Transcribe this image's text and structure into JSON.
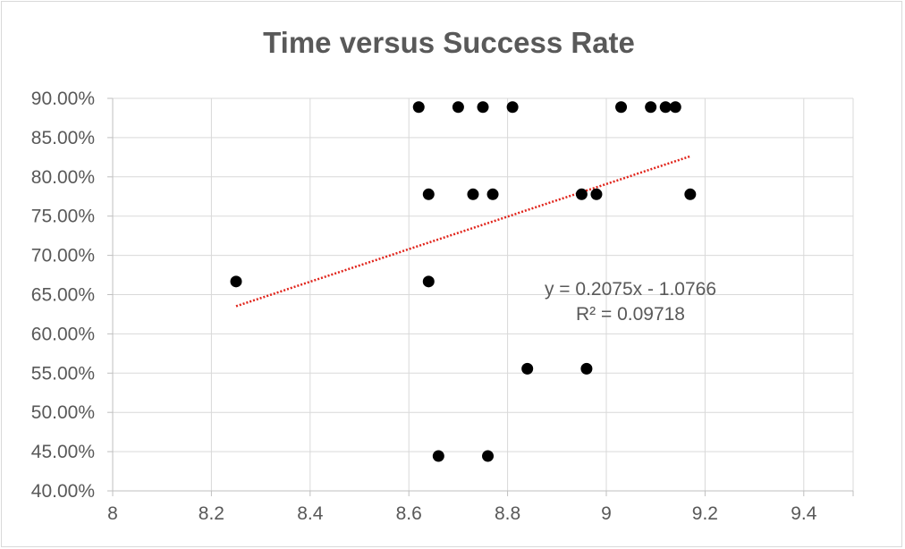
{
  "chart_data": {
    "type": "scatter",
    "title": "Time versus Success Rate",
    "xlabel": "",
    "ylabel": "",
    "xlim": [
      8,
      9.5
    ],
    "ylim": [
      0.4,
      0.9
    ],
    "x_ticks": [
      8,
      8.2,
      8.4,
      8.6,
      8.8,
      9,
      9.2,
      9.4
    ],
    "x_tick_labels": [
      "8",
      "8.2",
      "8.4",
      "8.6",
      "8.8",
      "9",
      "9.2",
      "9.4"
    ],
    "y_ticks": [
      0.4,
      0.45,
      0.5,
      0.55,
      0.6,
      0.65,
      0.7,
      0.75,
      0.8,
      0.85,
      0.9
    ],
    "y_tick_labels": [
      "40.00%",
      "45.00%",
      "50.00%",
      "55.00%",
      "60.00%",
      "65.00%",
      "70.00%",
      "75.00%",
      "80.00%",
      "85.00%",
      "90.00%"
    ],
    "grid": true,
    "legend": "none",
    "marker_color": "#000000",
    "trendline_color": "#e0241b",
    "points": [
      {
        "x": 8.25,
        "y": 0.6667
      },
      {
        "x": 8.62,
        "y": 0.8889
      },
      {
        "x": 8.7,
        "y": 0.8889
      },
      {
        "x": 8.75,
        "y": 0.8889
      },
      {
        "x": 8.81,
        "y": 0.8889
      },
      {
        "x": 9.03,
        "y": 0.8889
      },
      {
        "x": 9.09,
        "y": 0.8889
      },
      {
        "x": 9.12,
        "y": 0.8889
      },
      {
        "x": 9.14,
        "y": 0.8889
      },
      {
        "x": 8.64,
        "y": 0.7778
      },
      {
        "x": 8.73,
        "y": 0.7778
      },
      {
        "x": 8.77,
        "y": 0.7778
      },
      {
        "x": 8.95,
        "y": 0.7778
      },
      {
        "x": 8.98,
        "y": 0.7778
      },
      {
        "x": 9.17,
        "y": 0.7778
      },
      {
        "x": 8.64,
        "y": 0.6667
      },
      {
        "x": 8.84,
        "y": 0.5556
      },
      {
        "x": 8.96,
        "y": 0.5556
      },
      {
        "x": 8.66,
        "y": 0.4444
      },
      {
        "x": 8.76,
        "y": 0.4444
      }
    ],
    "trendline": {
      "slope": 0.2075,
      "intercept": -1.0766,
      "x_range": [
        8.25,
        9.17
      ],
      "equation": "y = 0.2075x - 1.0766",
      "r_squared": "R² = 0.09718"
    }
  }
}
